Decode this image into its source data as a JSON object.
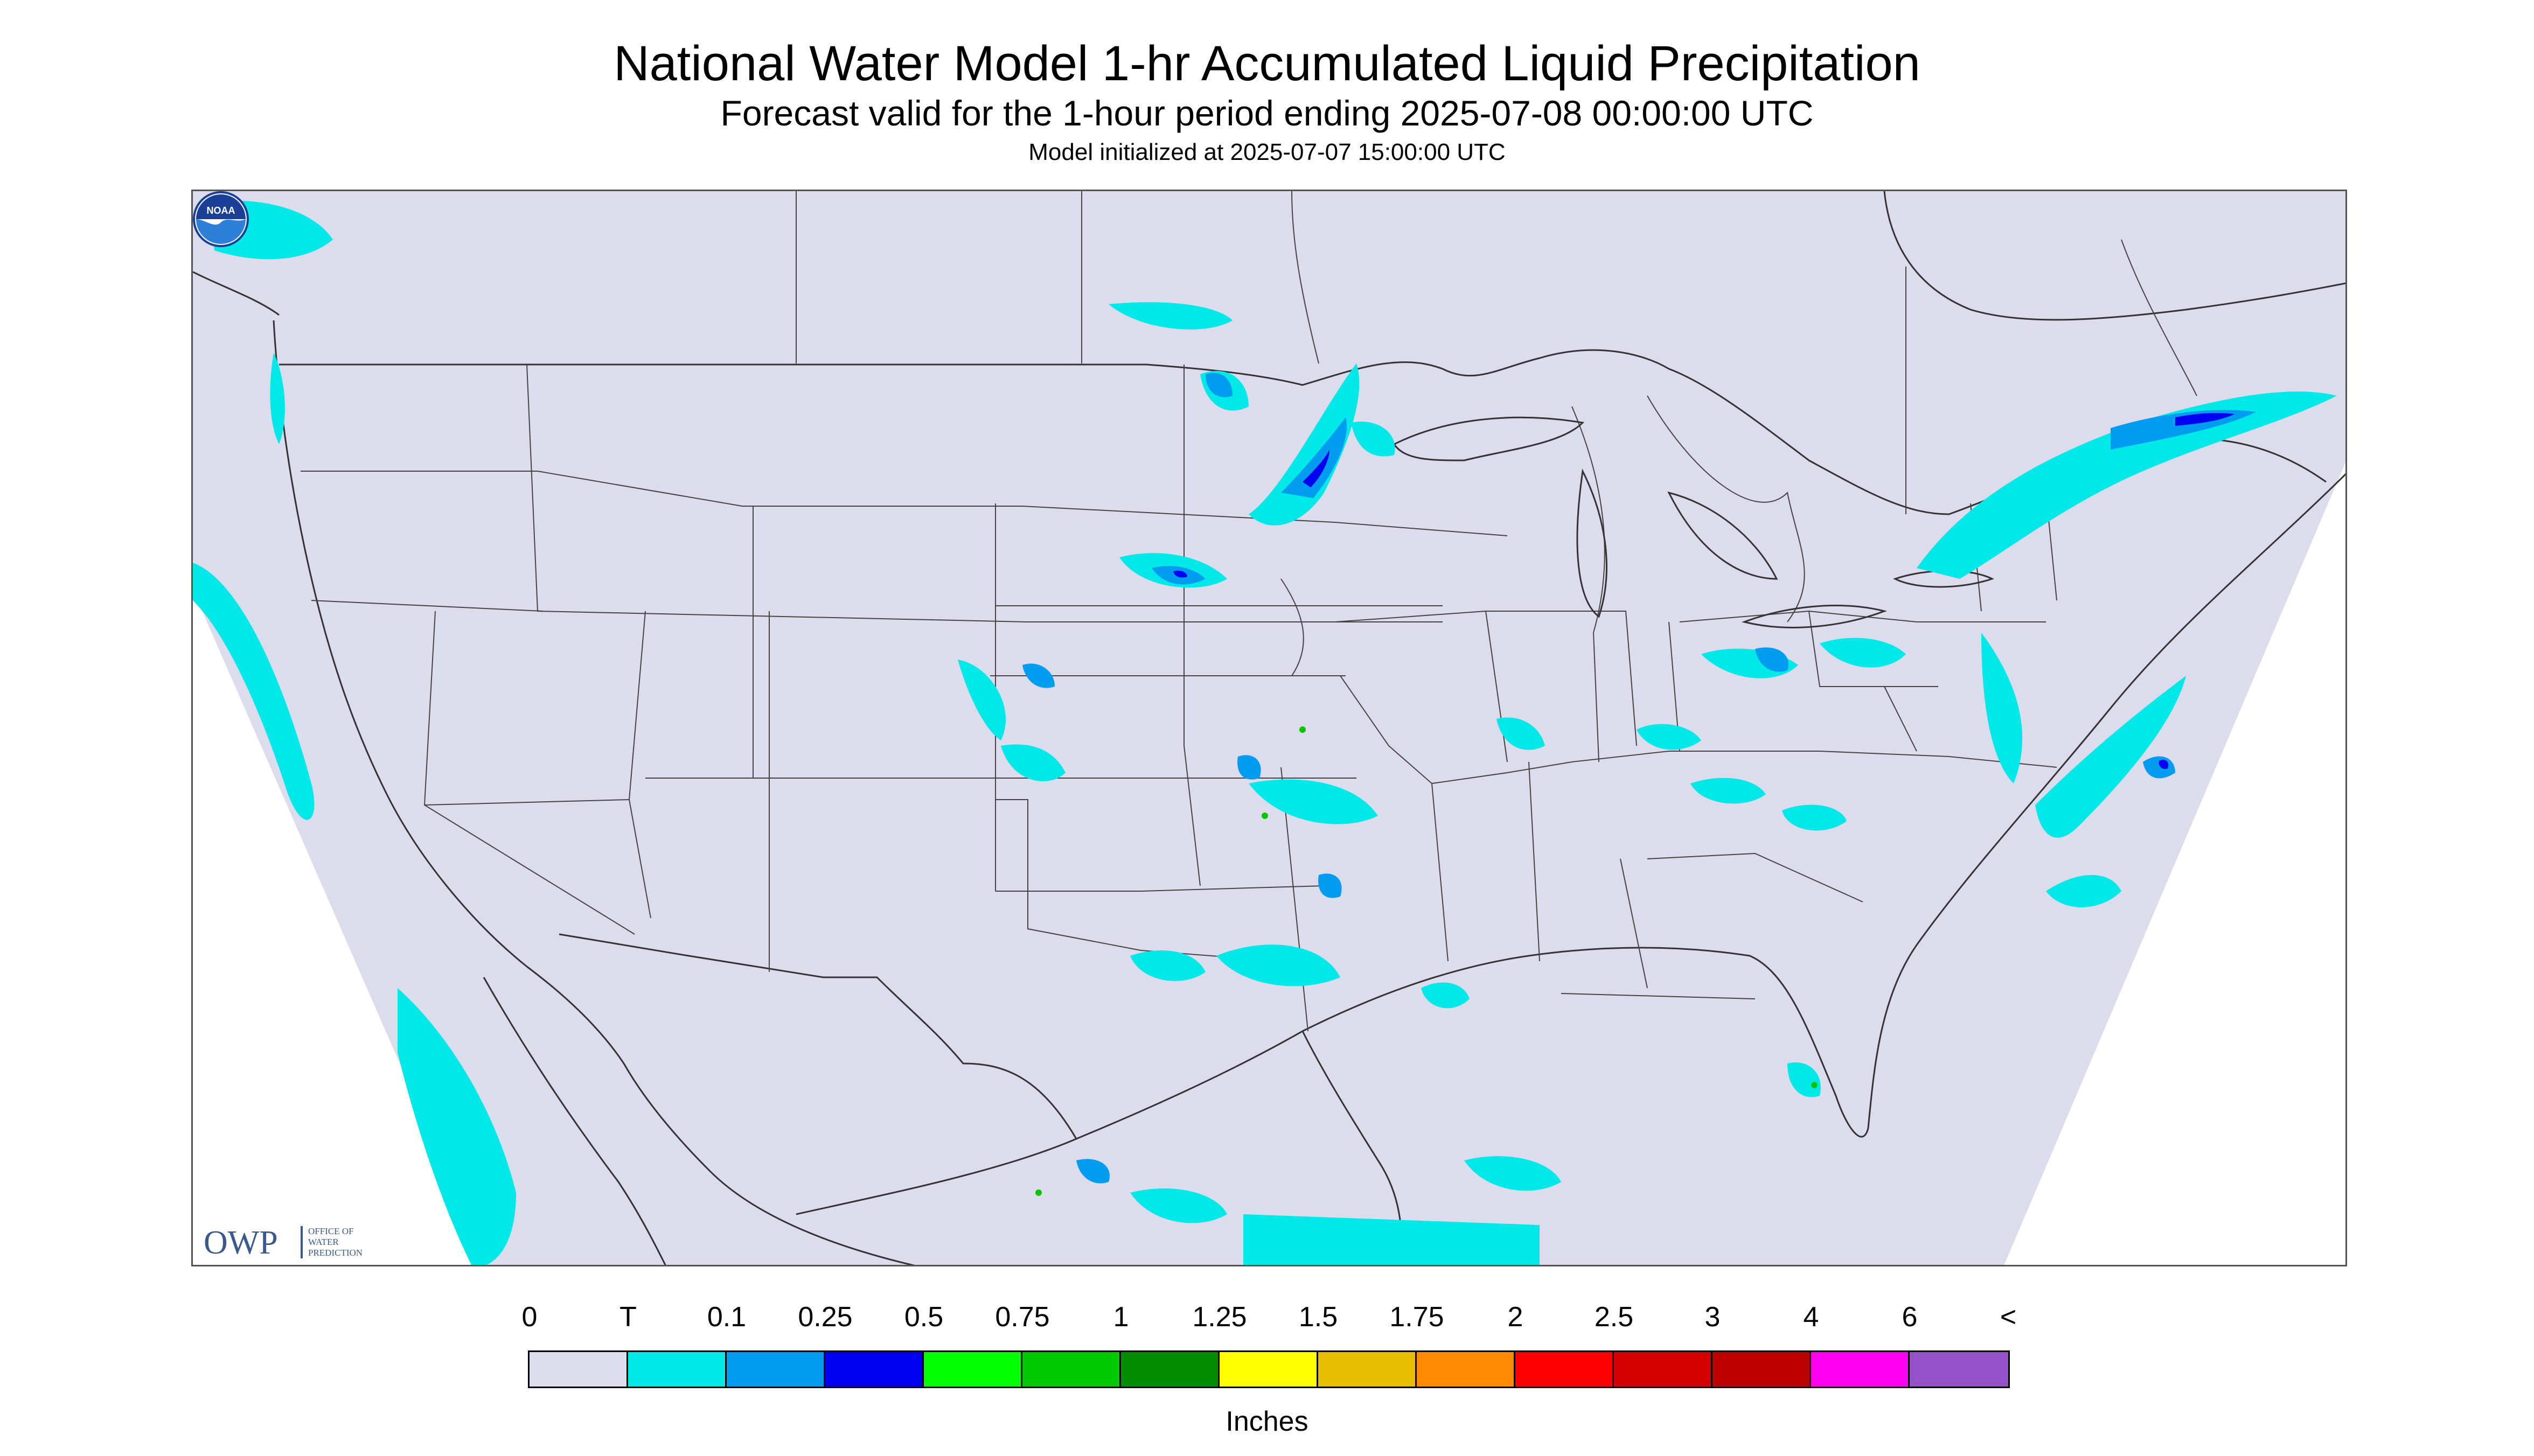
{
  "title": "National Water Model 1-hr Accumulated Liquid Precipitation",
  "subtitle": "Forecast valid for the 1-hour period ending 2025-07-08 00:00:00 UTC",
  "model_init": "Model initialized at 2025-07-07 15:00:00 UTC",
  "owp_logo": {
    "letters": "OWP",
    "text_lines": [
      "Office of",
      "Water",
      "Prediction"
    ]
  },
  "noaa_logo_text": "NOAA",
  "legend": {
    "tick_labels": [
      "0",
      "T",
      "0.1",
      "0.25",
      "0.5",
      "0.75",
      "1",
      "1.25",
      "1.5",
      "1.75",
      "2",
      "2.5",
      "3",
      "4",
      "6",
      "<"
    ],
    "colors": [
      "#dcdcec",
      "#00e8e8",
      "#009cf0",
      "#0000f0",
      "#00ff00",
      "#00c800",
      "#008c00",
      "#ffff00",
      "#e6be00",
      "#ff8c00",
      "#ff0000",
      "#d70000",
      "#be0000",
      "#ff00f0",
      "#9650c8"
    ],
    "units": "Inches"
  },
  "map": {
    "domain_color": "#dcdcec",
    "outside_color": "#ffffff",
    "boundary_color": "#333333",
    "precip_colors": {
      "trace": "#00e8e8",
      "light": "#009cf0",
      "moderate": "#0000f0",
      "heavy": "#00c800"
    }
  }
}
